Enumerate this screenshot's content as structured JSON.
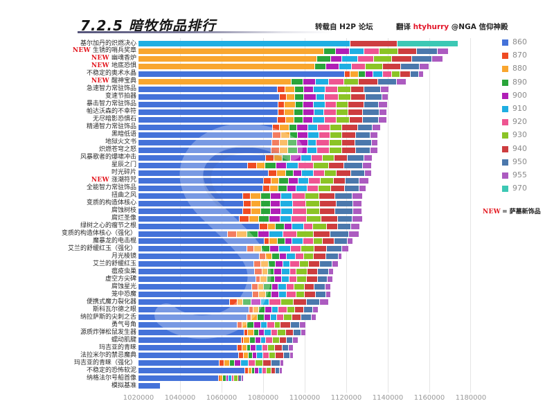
{
  "header": {
    "title": "7.2.5  暗牧饰品排行",
    "source": "转载自 H2P 论坛",
    "translator_prefix": "翻译 ",
    "translator_name": "htyhurry",
    "translator_suffix": " @NGA 信仰神殿"
  },
  "note": {
    "new_tag": "NEW",
    "text": "= 萨墓新饰品"
  },
  "chart_data": {
    "type": "bar",
    "orientation": "horizontal",
    "stacked": true,
    "title": "7.2.5 暗牧饰品排行",
    "xlabel": "",
    "ylabel": "",
    "xlim": [
      1020000,
      1180000
    ],
    "xticks": [
      1020000,
      1040000,
      1060000,
      1080000,
      1100000,
      1120000,
      1140000,
      1160000,
      1180000
    ],
    "xtick_labels": [
      "1020000",
      "1040000",
      "1060000",
      "1080000",
      "1100000",
      "1120000",
      "1140000",
      "1160000",
      "1180000"
    ],
    "grid": "vertical",
    "legend_position": "right",
    "new_marker": "NEW",
    "series": [
      {
        "name": "860",
        "color": "#4472d9"
      },
      {
        "name": "870",
        "color": "#ef4b23"
      },
      {
        "name": "880",
        "color": "#f9a62f"
      },
      {
        "name": "890",
        "color": "#2aa53a"
      },
      {
        "name": "900",
        "color": "#b01eb6"
      },
      {
        "name": "910",
        "color": "#1faee2"
      },
      {
        "name": "920",
        "color": "#ee5591"
      },
      {
        "name": "930",
        "color": "#8bc426"
      },
      {
        "name": "940",
        "color": "#cd3d3f"
      },
      {
        "name": "950",
        "color": "#4b78ac"
      },
      {
        "name": "955",
        "color": "#ac5bc0"
      },
      {
        "name": "970",
        "color": "#3cc8b4"
      }
    ],
    "categories": [
      "基尔加丹的炽燃决心",
      "生锈的哨兵奖章",
      "幽魂香炉",
      "地底恐惧",
      "不稳定的奥术水晶",
      "醒神宝典",
      "急速智力常驻饰品",
      "变速节拍器",
      "暴击智力常驻饰品",
      "帕达沃森的不幸符",
      "无尽暗影恐惧石",
      "精通智力常驻饰品",
      "黑暗低语",
      "地狱火文书",
      "炽燃苍穹之怒",
      "风暴歌者的爆啸冲击",
      "星辰之门",
      "时光碎片",
      "涨潮符咒",
      "全能智力常驻饰品",
      "扭曲之风",
      "变质的构造体核心",
      "腐蚀树枝",
      "腐烂圣像",
      "绿树之心的瘤节之根",
      "变质的构造体核心（强化）",
      "魔暴龙的电击棍",
      "艾兰的舒缓红玉（强化）",
      "月光棱镜",
      "艾兰的舒缓红玉",
      "瘟疫虫巢",
      "虚空方尖碑",
      "腐蚀星光",
      "笼中恐魔",
      "便携式魔力裂化器",
      "斯科瓦尔德之眼",
      "纳拉萨斯的尖刺之舌",
      "勇气号角",
      "源质炸弹松鼠发生器",
      "蠕动肌腱",
      "玛吉亚的青睐",
      "法拉米尔的禁忌魔典",
      "玛吉亚的青睐（强化）",
      "不稳定的恐怖软泥",
      "纳格法尔号船首像",
      "模拟基准"
    ],
    "rows": [
      {
        "label": "基尔加丹的炽燃决心",
        "new": false,
        "values": [
          null,
          null,
          null,
          null,
          null,
          1122000,
          null,
          null,
          1144700,
          null,
          null,
          1174000
        ]
      },
      {
        "label": "生锈的哨兵奖章",
        "new": true,
        "values": [
          null,
          null,
          1109200,
          1115000,
          1121800,
          1128700,
          1136000,
          1145000,
          1154000,
          1164000,
          1169300,
          null
        ]
      },
      {
        "label": "幽魂香炉",
        "new": true,
        "values": [
          null,
          null,
          1106000,
          1112700,
          1118000,
          1125700,
          1133300,
          1142000,
          1151700,
          1161300,
          1166700,
          null
        ]
      },
      {
        "label": "地底恐惧",
        "new": true,
        "values": [
          null,
          null,
          1105000,
          1110300,
          1116700,
          1122700,
          1129300,
          1137700,
          1146300,
          1155300,
          1160000,
          null
        ]
      },
      {
        "label": "不稳定的奥术水晶",
        "new": false,
        "values": [
          1119300,
          1122000,
          1126000,
          1129300,
          1133000,
          1137700,
          1142000,
          1146000,
          1151000,
          1155000,
          1157300,
          null
        ]
      },
      {
        "label": "醒神宝典",
        "new": true,
        "values": [
          null,
          null,
          1093700,
          1099300,
          1105300,
          1111700,
          1119000,
          1126000,
          1135300,
          1144300,
          1149000,
          null
        ]
      },
      {
        "label": "急速智力常驻饰品",
        "new": false,
        "values": [
          1087000,
          1090700,
          1095300,
          1099700,
          1104300,
          1110000,
          1116000,
          1122300,
          1128700,
          1136700,
          1140700,
          null
        ]
      },
      {
        "label": "变速节拍器",
        "new": false,
        "values": [
          1088000,
          1091300,
          1095300,
          1099700,
          1105700,
          1109700,
          1116300,
          1122300,
          1129300,
          1137300,
          1140300,
          null
        ]
      },
      {
        "label": "暴击智力常驻饰品",
        "new": false,
        "values": [
          1087300,
          1090300,
          1095700,
          1099300,
          1104300,
          1110000,
          1115300,
          1121000,
          1128700,
          1135700,
          1140000,
          null
        ]
      },
      {
        "label": "帕达沃森的不幸符",
        "new": false,
        "values": [
          1087300,
          1090300,
          1095000,
          1099300,
          1104700,
          1109300,
          1115300,
          1121000,
          1128000,
          1136000,
          1139700,
          null
        ]
      },
      {
        "label": "无尽暗影恐惧石",
        "new": false,
        "values": [
          1087000,
          1091000,
          1095000,
          1099300,
          1104000,
          1109700,
          1115300,
          1121700,
          1128000,
          1135700,
          1139700,
          null
        ]
      },
      {
        "label": "精通智力常驻饰品",
        "new": false,
        "values": [
          1084700,
          1088000,
          1092700,
          1096300,
          1101700,
          1106300,
          1112300,
          1118000,
          1125700,
          1132700,
          1136700,
          null
        ]
      },
      {
        "label": "黑暗低语",
        "new": false,
        "values": [
          1084700,
          1088700,
          1093000,
          1096700,
          1101700,
          1107000,
          1112300,
          1118000,
          1124700,
          1131700,
          1135300,
          null
        ]
      },
      {
        "label": "地狱火文书",
        "new": false,
        "values": [
          1084300,
          1088000,
          1092000,
          1096300,
          1101700,
          1105700,
          1112000,
          1118000,
          1124300,
          1132300,
          1135300,
          null
        ]
      },
      {
        "label": "炽燃苍穹之怒",
        "new": false,
        "values": [
          1084000,
          1088000,
          1092000,
          1096700,
          1101300,
          1106000,
          1112000,
          1118000,
          1124700,
          1131700,
          1135300,
          null
        ]
      },
      {
        "label": "风暴歌者的爆啸冲击",
        "new": false,
        "values": [
          1081300,
          1085300,
          1089300,
          1093300,
          1098300,
          1103300,
          1108700,
          1114300,
          1120700,
          1128700,
          1132700,
          null
        ]
      },
      {
        "label": "星辰之门",
        "new": false,
        "values": [
          1072700,
          1077000,
          1081000,
          1086300,
          1091300,
          1097000,
          1104300,
          1111700,
          1119000,
          1128000,
          1132300,
          null
        ]
      },
      {
        "label": "时光碎片",
        "new": false,
        "values": [
          1082700,
          1086700,
          1091000,
          1094700,
          1098700,
          1104300,
          1109700,
          1115300,
          1122300,
          1129000,
          1132300,
          null
        ]
      },
      {
        "label": "涨潮符咒",
        "new": true,
        "values": [
          1080300,
          1084000,
          1087700,
          1092300,
          1097000,
          1102000,
          1107700,
          1114000,
          1119700,
          1126300,
          1131000,
          null
        ]
      },
      {
        "label": "全能智力常驻饰品",
        "new": false,
        "values": [
          1080000,
          1083300,
          1087300,
          1091700,
          1096000,
          1101300,
          1106700,
          1112700,
          1119300,
          1126300,
          1129700,
          null
        ]
      },
      {
        "label": "扭曲之风",
        "new": false,
        "values": [
          1070300,
          1074000,
          1079000,
          1083700,
          1088700,
          1094000,
          1100300,
          1107000,
          1114700,
          1123000,
          1128000,
          null
        ]
      },
      {
        "label": "变质的构造体核心",
        "new": false,
        "values": [
          1070700,
          1074300,
          1079000,
          1083700,
          1088300,
          1094300,
          1100700,
          1107300,
          1115300,
          1123300,
          1127700,
          null
        ]
      },
      {
        "label": "腐蚀树枝",
        "new": false,
        "values": [
          1070300,
          1074300,
          1079000,
          1083700,
          1088700,
          1094300,
          1101000,
          1107300,
          1114700,
          1123300,
          1127700,
          null
        ]
      },
      {
        "label": "腐烂圣像",
        "new": false,
        "values": [
          1068700,
          1073300,
          1078000,
          1083000,
          1088300,
          1093700,
          1101000,
          1108000,
          1116000,
          1123000,
          1128000,
          null
        ]
      },
      {
        "label": "绿树之心的瘤节之根",
        "new": false,
        "values": [
          1078300,
          1082300,
          1086000,
          1090300,
          1094000,
          1099700,
          1104000,
          1110700,
          1116000,
          1122300,
          1126700,
          null
        ]
      },
      {
        "label": "变质的构造体核心（强化）",
        "new": false,
        "values": [
          1063000,
          1067300,
          1072300,
          1077700,
          1083000,
          1089700,
          1096300,
          1104300,
          1112300,
          1121300,
          1126300,
          null
        ]
      },
      {
        "label": "魔暴龙的电击棍",
        "new": false,
        "values": [
          1080700,
          1083000,
          1087000,
          1090700,
          1094000,
          1099300,
          1104300,
          1108700,
          1114300,
          1120700,
          1123300,
          null
        ]
      },
      {
        "label": "艾兰的舒缓红玉（强化）",
        "new": false,
        "values": [
          1072300,
          1075700,
          1079300,
          1083300,
          1087700,
          1093300,
          1098300,
          1104700,
          1110700,
          1118000,
          1121300,
          null
        ]
      },
      {
        "label": "月光棱镜",
        "new": false,
        "values": [
          1078300,
          1081300,
          1084300,
          1088000,
          1091300,
          1095700,
          1099700,
          1104300,
          1110300,
          1116300,
          1118000,
          null
        ]
      },
      {
        "label": "艾兰的舒缓红玉",
        "new": false,
        "values": [
          1075700,
          1079000,
          1082700,
          1086000,
          1089700,
          1093000,
          1097700,
          1102000,
          1107300,
          1113300,
          1116300,
          null
        ]
      },
      {
        "label": "瘟疫虫巢",
        "new": false,
        "values": [
          1076000,
          1079700,
          1082300,
          1085300,
          1089000,
          1093000,
          1096000,
          1101300,
          1106300,
          1111700,
          1114000,
          null
        ]
      },
      {
        "label": "虚空方尖碑",
        "new": false,
        "values": [
          1076700,
          1078700,
          1082000,
          1085700,
          1089000,
          1092700,
          1096300,
          1101000,
          1106300,
          1111000,
          1113700,
          null
        ]
      },
      {
        "label": "腐蚀星光",
        "new": false,
        "values": [
          1074700,
          1077700,
          1080300,
          1084300,
          1087300,
          1091300,
          1095000,
          1100000,
          1104700,
          1110000,
          1112700,
          null
        ]
      },
      {
        "label": "笼中恐魔",
        "new": false,
        "values": [
          1075000,
          1078000,
          1081300,
          1084000,
          1087700,
          1091300,
          1096000,
          1100000,
          1105300,
          1110300,
          1112700,
          null
        ]
      },
      {
        "label": "便携式魔力裂化器",
        "new": false,
        "values": [
          1064000,
          1067700,
          1070300,
          1074300,
          1079000,
          1083000,
          1088700,
          1094700,
          1101000,
          1107300,
          1111700,
          null
        ]
      },
      {
        "label": "斯科瓦尔德之眼",
        "new": false,
        "values": [
          1073300,
          1075300,
          1078000,
          1081000,
          1084300,
          1087300,
          1091700,
          1095300,
          1099700,
          1104000,
          1106700,
          null
        ]
      },
      {
        "label": "纳拉萨斯的尖刺之舌",
        "new": false,
        "values": [
          1072300,
          1074300,
          1077300,
          1080700,
          1083700,
          1086700,
          1090000,
          1094000,
          1098300,
          1103300,
          1105700,
          null
        ]
      },
      {
        "label": "勇气号角",
        "new": false,
        "values": [
          1067700,
          1070000,
          1072300,
          1075700,
          1079000,
          1082000,
          1085700,
          1088300,
          1093300,
          1097700,
          1100700,
          null
        ]
      },
      {
        "label": "源质炸弹松鼠发生器",
        "new": false,
        "values": [
          1071000,
          1072700,
          1075700,
          1078000,
          1080700,
          1084000,
          1087000,
          1091000,
          1094700,
          1098300,
          1100700,
          null
        ]
      },
      {
        "label": "蠕动肌腱",
        "new": false,
        "values": [
          1069700,
          1070700,
          1073700,
          1076300,
          1079000,
          1081300,
          1084700,
          1088000,
          1091300,
          1094300,
          1097000,
          null
        ]
      },
      {
        "label": "玛吉亚的青睐",
        "new": false,
        "values": [
          1067700,
          1070000,
          1072300,
          1074000,
          1076700,
          1079700,
          1082300,
          1085700,
          1089300,
          1092300,
          1094700,
          null
        ]
      },
      {
        "label": "法拉米尔的禁忌魔典",
        "new": false,
        "values": [
          1068300,
          1070700,
          1073000,
          1075000,
          1077000,
          1080000,
          1083000,
          1086000,
          1090000,
          1093000,
          1094700,
          null
        ]
      },
      {
        "label": "玛吉亚的青睐（强化）",
        "new": false,
        "values": [
          1059000,
          1061300,
          1064000,
          1066300,
          1069300,
          1073000,
          1076300,
          1080000,
          1084000,
          1088300,
          1090000,
          null
        ]
      },
      {
        "label": "不稳定的恐怖软泥",
        "new": false,
        "values": [
          1071300,
          1073000,
          1074700,
          1076000,
          1078000,
          1079700,
          1081700,
          1084000,
          1086000,
          1088000,
          1089300,
          null
        ]
      },
      {
        "label": "纳格法尔号船首像",
        "new": false,
        "values": [
          1058700,
          1059000,
          1060700,
          1062300,
          1063300,
          1065000,
          1066000,
          1068000,
          1068300,
          1069700,
          1070700,
          null
        ]
      },
      {
        "label": "模拟基准",
        "new": false,
        "values": [
          1030700,
          null,
          null,
          null,
          null,
          null,
          null,
          null,
          null,
          null,
          null,
          null
        ]
      }
    ]
  }
}
